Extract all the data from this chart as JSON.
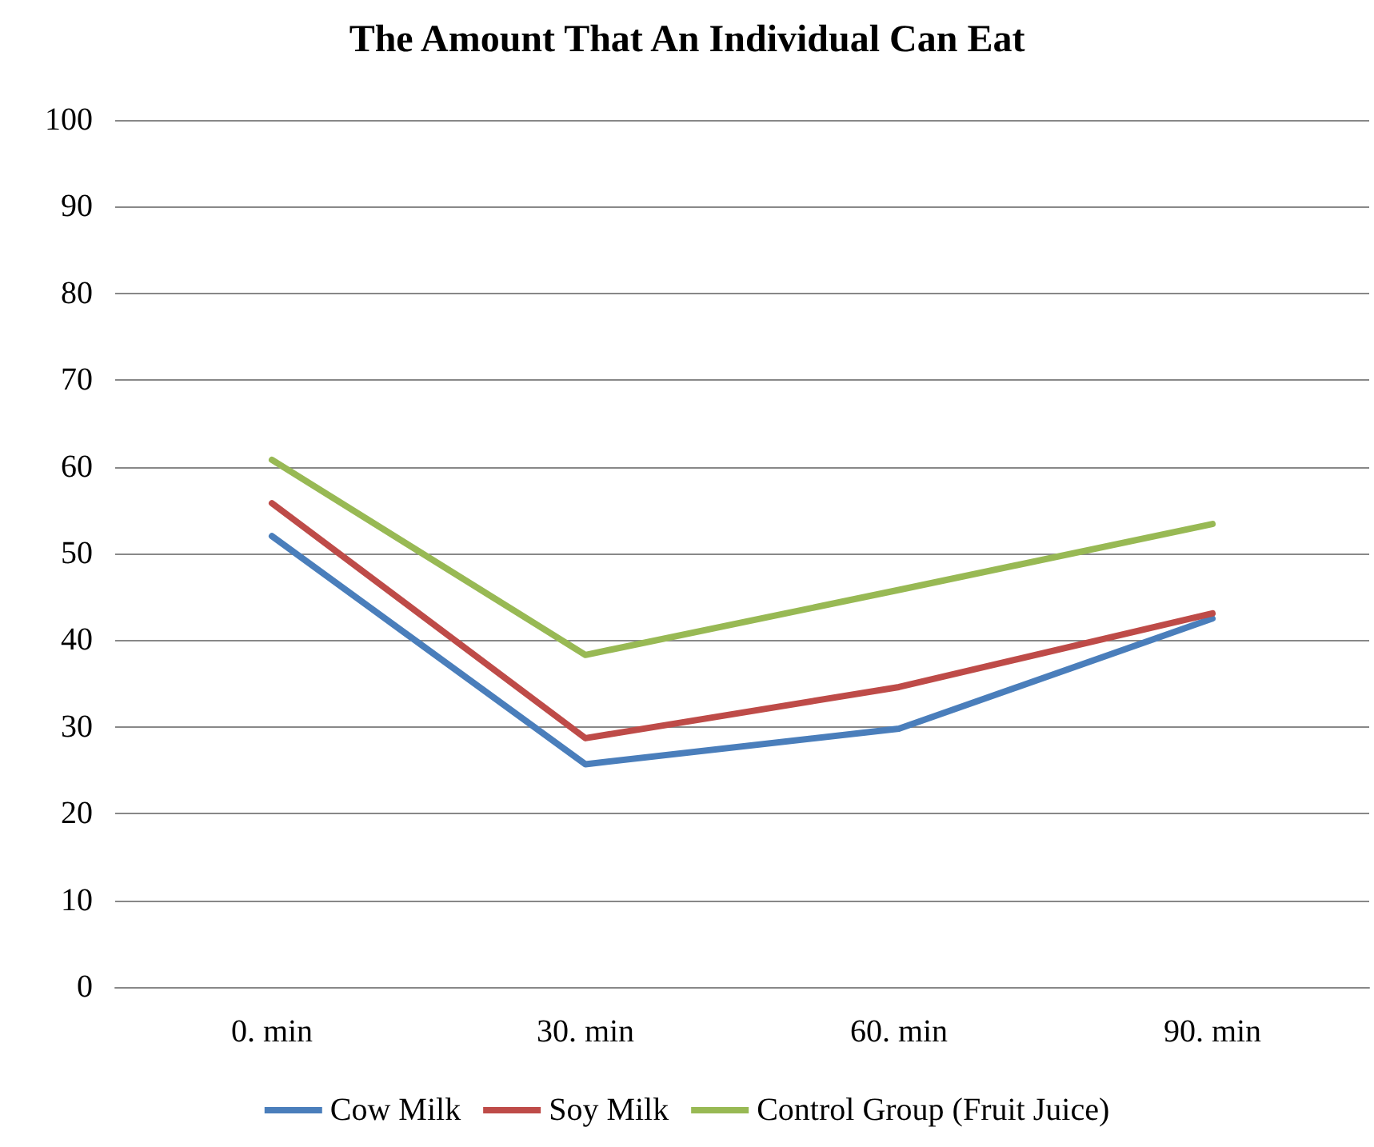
{
  "chart_data": {
    "type": "line",
    "title": "The Amount That An Individual Can Eat",
    "categories": [
      "0. min",
      "30. min",
      "60. min",
      "90. min"
    ],
    "series": [
      {
        "name": "Cow Milk",
        "color": "#4a7ebb",
        "values": [
          52,
          25.7,
          29.8,
          42.5
        ]
      },
      {
        "name": "Soy Milk",
        "color": "#be4b48",
        "values": [
          55.8,
          28.7,
          34.6,
          43.1
        ]
      },
      {
        "name": "Control Group (Fruit Juice)",
        "color": "#98b954",
        "values": [
          60.8,
          38.3,
          45.8,
          53.4
        ]
      }
    ],
    "ylim": [
      0,
      100
    ],
    "yticks": [
      0,
      10,
      20,
      30,
      40,
      50,
      60,
      70,
      80,
      90,
      100
    ],
    "grid": "y",
    "legend": "bottom",
    "marker": "none",
    "line_style": "solid"
  }
}
